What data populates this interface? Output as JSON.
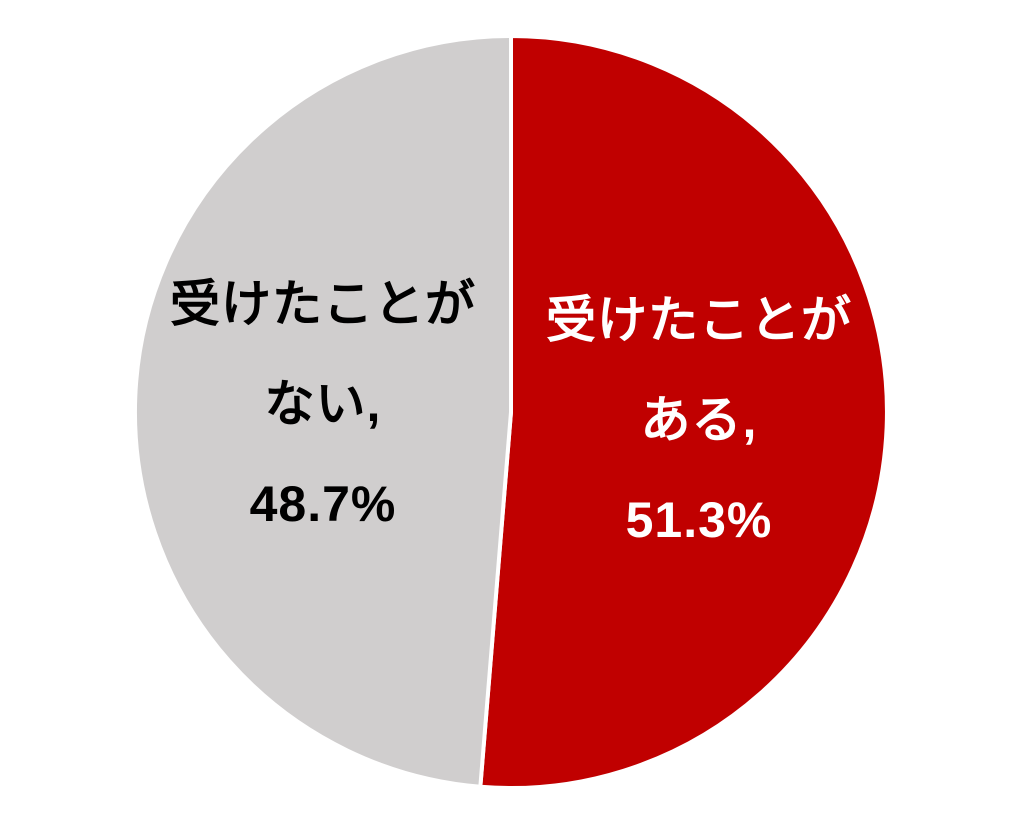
{
  "chart_data": {
    "type": "pie",
    "title": "",
    "legend": "none",
    "background": "#FFFFFF",
    "start_angle_deg": 0,
    "direction": "clockwise",
    "segments": [
      {
        "label": "受けたことがある",
        "value": 51.3,
        "percent_text": "51.3%",
        "label_lines": [
          "受けたことが",
          "ある,",
          "51.3%"
        ],
        "color": "#C00000",
        "text_color": "#FFFFFF"
      },
      {
        "label": "受けたことがない",
        "value": 48.7,
        "percent_text": "48.7%",
        "label_lines": [
          "受けたことが",
          "ない,",
          "48.7%"
        ],
        "color": "#D0CECE",
        "text_color": "#000000"
      }
    ]
  }
}
